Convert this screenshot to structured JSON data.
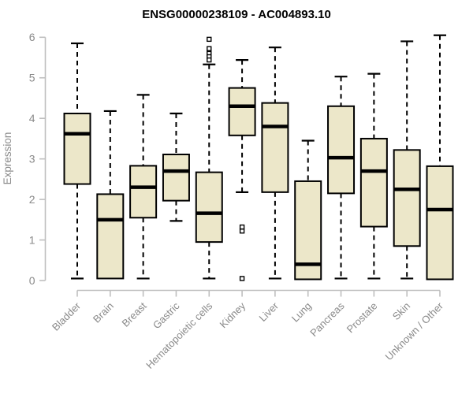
{
  "chart_data": {
    "type": "boxplot",
    "title": "ENSG00000238109 - AC004893.10",
    "xlabel": "",
    "ylabel": "Expression",
    "ylim": [
      0,
      6
    ],
    "yticks": [
      0,
      1,
      2,
      3,
      4,
      5,
      6
    ],
    "grid": false,
    "legend": false,
    "categories": [
      "Bladder",
      "Brain",
      "Breast",
      "Gastric",
      "Hematopoietic cells",
      "Kidney",
      "Liver",
      "Lung",
      "Pancreas",
      "Prostate",
      "Skin",
      "Unknown / Other"
    ],
    "series": [
      {
        "category": "Bladder",
        "whisker_low": 0.05,
        "q1": 2.38,
        "median": 3.62,
        "q3": 4.12,
        "whisker_high": 5.85,
        "outliers": []
      },
      {
        "category": "Brain",
        "whisker_low": 0.05,
        "q1": 0.05,
        "median": 1.5,
        "q3": 2.13,
        "whisker_high": 4.18,
        "outliers": []
      },
      {
        "category": "Breast",
        "whisker_low": 0.05,
        "q1": 1.55,
        "median": 2.3,
        "q3": 2.83,
        "whisker_high": 4.58,
        "outliers": []
      },
      {
        "category": "Gastric",
        "whisker_low": 1.47,
        "q1": 1.97,
        "median": 2.7,
        "q3": 3.11,
        "whisker_high": 4.12,
        "outliers": []
      },
      {
        "category": "Hematopoietic cells",
        "whisker_low": 0.05,
        "q1": 0.95,
        "median": 1.66,
        "q3": 2.67,
        "whisker_high": 5.33,
        "outliers": [
          5.95,
          5.72,
          5.6,
          5.52,
          5.44
        ]
      },
      {
        "category": "Kidney",
        "whisker_low": 2.18,
        "q1": 3.58,
        "median": 4.3,
        "q3": 4.75,
        "whisker_high": 5.44,
        "outliers": [
          1.32,
          1.22,
          0.05
        ]
      },
      {
        "category": "Liver",
        "whisker_low": 0.05,
        "q1": 2.18,
        "median": 3.8,
        "q3": 4.38,
        "whisker_high": 5.75,
        "outliers": []
      },
      {
        "category": "Lung",
        "whisker_low": 0.03,
        "q1": 0.03,
        "median": 0.4,
        "q3": 2.45,
        "whisker_high": 3.45,
        "outliers": []
      },
      {
        "category": "Pancreas",
        "whisker_low": 0.05,
        "q1": 2.15,
        "median": 3.03,
        "q3": 4.3,
        "whisker_high": 5.03,
        "outliers": []
      },
      {
        "category": "Prostate",
        "whisker_low": 0.05,
        "q1": 1.33,
        "median": 2.7,
        "q3": 3.5,
        "whisker_high": 5.1,
        "outliers": []
      },
      {
        "category": "Skin",
        "whisker_low": 0.05,
        "q1": 0.85,
        "median": 2.25,
        "q3": 3.22,
        "whisker_high": 5.9,
        "outliers": []
      },
      {
        "category": "Unknown / Other",
        "whisker_low": 0.03,
        "q1": 0.03,
        "median": 1.75,
        "q3": 2.82,
        "whisker_high": 6.05,
        "outliers": []
      }
    ],
    "colors": {
      "background": "#ffffff",
      "box_fill": "#ECE7C9",
      "box_stroke": "#000000",
      "median_line": "#000000",
      "whisker": "#000000",
      "outlier_stroke": "#000000",
      "axis": "#BFBFBF",
      "tick_label": "#8A8A8A",
      "title": "#000000"
    }
  }
}
